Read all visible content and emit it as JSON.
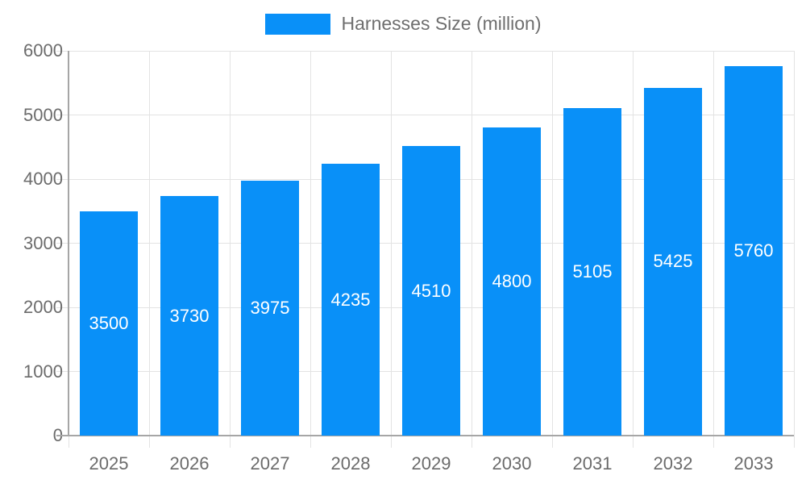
{
  "chart_data": {
    "type": "bar",
    "title": "",
    "series_name": "Harnesses Size (million)",
    "categories": [
      "2025",
      "2026",
      "2027",
      "2028",
      "2029",
      "2030",
      "2031",
      "2032",
      "2033"
    ],
    "values": [
      3500,
      3730,
      3975,
      4235,
      4510,
      4800,
      5105,
      5425,
      5760
    ],
    "xlabel": "",
    "ylabel": "",
    "ylim": [
      0,
      6000
    ],
    "ytick_step": 1000,
    "yticks": [
      0,
      1000,
      2000,
      3000,
      4000,
      5000,
      6000
    ],
    "grid": true,
    "legend_position": "top-center",
    "value_labels": "inside-center"
  },
  "colors": {
    "bar": "#0990F8",
    "grid": "#e3e3e3",
    "axis": "#a6a6a6",
    "axis_text": "#6b6b6b",
    "legend_text": "#6e6e6e",
    "value_label_text": "#ffffff",
    "background": "#ffffff"
  }
}
